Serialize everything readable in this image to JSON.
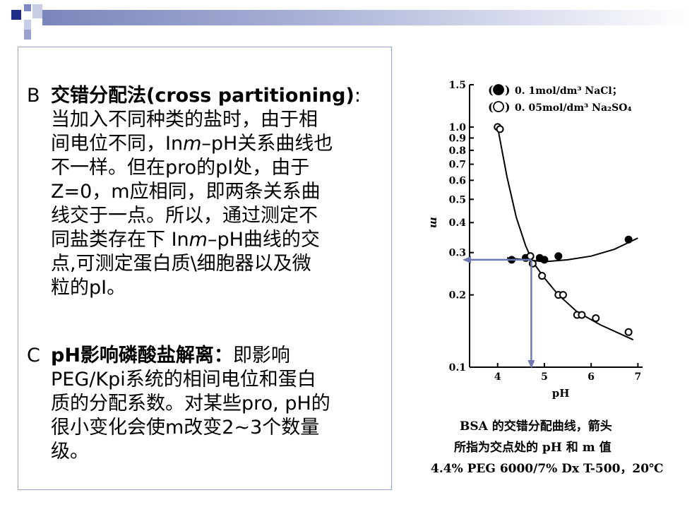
{
  "section_b": {
    "marker": "B",
    "title_cn": "交错分配法",
    "title_en": "(cross partitioning)",
    "colon": ":",
    "l2": "当加入不同种类的盐时，由于相",
    "l3a": "间电位不同，In",
    "l3m": "m",
    "l3b": "–pH关系曲线也",
    "l4": "不一样。但在pro的pI处，由于",
    "l5": "Z=0，m应相同，即两条关系曲",
    "l6": "线交于一点。所以，通过测定不",
    "l7a": "同盐类存在下 In",
    "l7m": "m",
    "l7b": "–pH曲线的交",
    "l8": "点,可测定蛋白质\\细胞器以及微",
    "l9": "粒的pI。"
  },
  "section_c": {
    "marker": "C",
    "title": "pH影响磷酸盐解离：",
    "l1b": "即影响",
    "l2": "PEG/Kpi系统的相间电位和蛋白",
    "l3": "质的分配系数。对某些pro, pH的",
    "l4": "很小变化会使m改变2~3个数量",
    "l5": "级。"
  },
  "figure": {
    "legend": [
      {
        "symbol": "(●)",
        "text": "0. 1mol/dm³ NaCl；"
      },
      {
        "symbol": "(○)",
        "text": "0. 05mol/dm³ Na₂SO₄"
      }
    ],
    "y_axis_label": "m",
    "x_axis_label": "pH",
    "y_ticks": [
      "1.5",
      "1.0",
      "0.9",
      "0.8",
      "0.7",
      "0.6",
      "0.5",
      "0.4",
      "0.3",
      "0.2",
      "0.1"
    ],
    "x_ticks": [
      "4",
      "5",
      "6",
      "7"
    ],
    "caption": [
      "BSA 的交错分配曲线，箭头",
      "所指为交点处的 pH 和 m 值",
      "4.4% PEG 6000/7% Dx T-500，20℃"
    ],
    "chart_data": {
      "type": "scatter",
      "x_label": "pH",
      "y_label": "m",
      "y_scale": "log",
      "xlim": [
        3.4,
        7.1
      ],
      "ylim": [
        0.1,
        1.5
      ],
      "series": [
        {
          "name": "0. 1mol/dm³ NaCl",
          "marker": "filled",
          "x": [
            4.3,
            4.6,
            4.7,
            4.9,
            5.0,
            5.3,
            6.8
          ],
          "y": [
            0.28,
            0.285,
            0.29,
            0.285,
            0.28,
            0.29,
            0.34
          ]
        },
        {
          "name": "0. 05mol/dm³ Na₂SO₄",
          "marker": "open",
          "x": [
            4.0,
            4.05,
            4.7,
            4.75,
            4.95,
            5.3,
            5.4,
            5.7,
            5.8,
            6.1,
            6.8
          ],
          "y": [
            1.0,
            0.98,
            0.29,
            0.27,
            0.24,
            0.2,
            0.2,
            0.165,
            0.165,
            0.16,
            0.14
          ]
        }
      ],
      "intersection": {
        "x": 4.72,
        "y": 0.28
      }
    }
  }
}
